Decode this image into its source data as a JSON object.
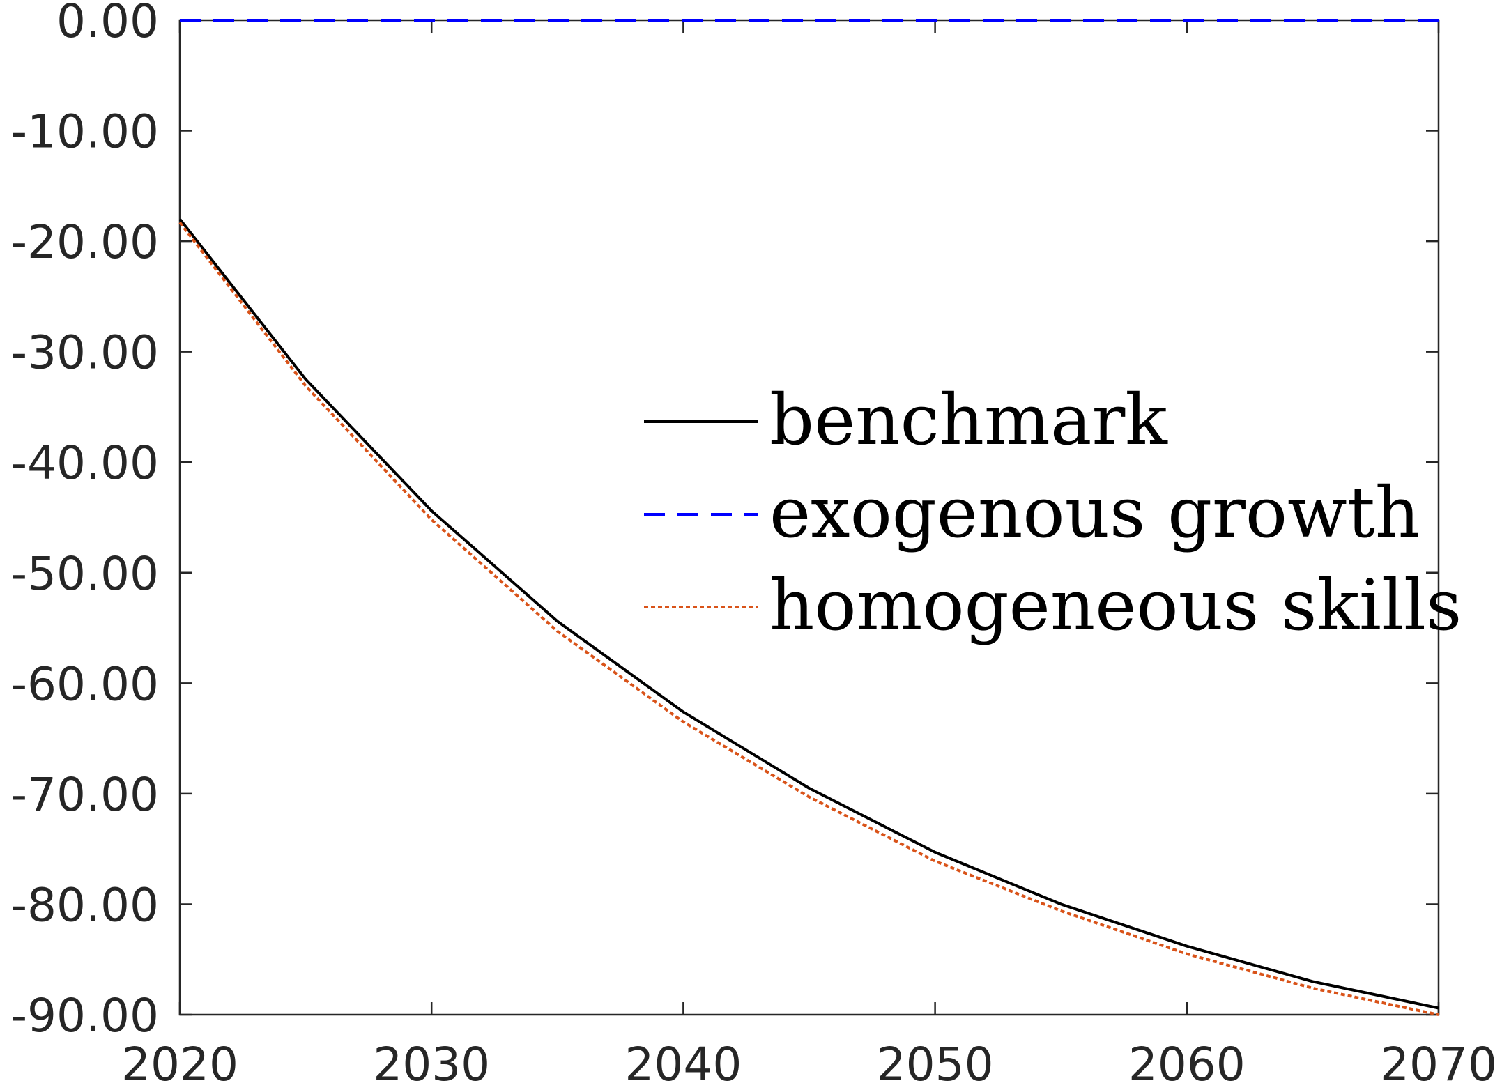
{
  "chart_data": {
    "type": "line",
    "title": "",
    "xlabel": "",
    "ylabel": "",
    "xlim": [
      2020,
      2070
    ],
    "ylim": [
      -90,
      0
    ],
    "xticks": [
      2020,
      2030,
      2040,
      2050,
      2060,
      2070
    ],
    "xtick_labels": [
      "2020",
      "2030",
      "2040",
      "2050",
      "2060",
      "2070"
    ],
    "yticks": [
      0,
      -10,
      -20,
      -30,
      -40,
      -50,
      -60,
      -70,
      -80,
      -90
    ],
    "ytick_labels": [
      "0.00",
      "-10.00",
      "-20.00",
      "-30.00",
      "-40.00",
      "-50.00",
      "-60.00",
      "-70.00",
      "-80.00",
      "-90.00"
    ],
    "x": [
      2020,
      2025,
      2030,
      2035,
      2040,
      2045,
      2050,
      2055,
      2060,
      2065,
      2070
    ],
    "series": [
      {
        "name": "benchmark",
        "color": "#000000",
        "style": "solid",
        "values": [
          -18.0,
          -32.5,
          -44.4,
          -54.4,
          -62.6,
          -69.5,
          -75.3,
          -80.0,
          -83.8,
          -87.0,
          -89.4
        ]
      },
      {
        "name": "exogenous growth",
        "color": "#0000ff",
        "style": "dashed",
        "values": [
          0,
          0,
          0,
          0,
          0,
          0,
          0,
          0,
          0,
          0,
          0
        ]
      },
      {
        "name": "homogeneous skills",
        "color": "#d95319",
        "style": "dotted",
        "values": [
          -18.3,
          -33.1,
          -45.2,
          -55.3,
          -63.5,
          -70.3,
          -76.1,
          -80.6,
          -84.5,
          -87.6,
          -90.0
        ]
      }
    ],
    "grid": false,
    "legend": {
      "position": "center-right",
      "box": false
    }
  }
}
